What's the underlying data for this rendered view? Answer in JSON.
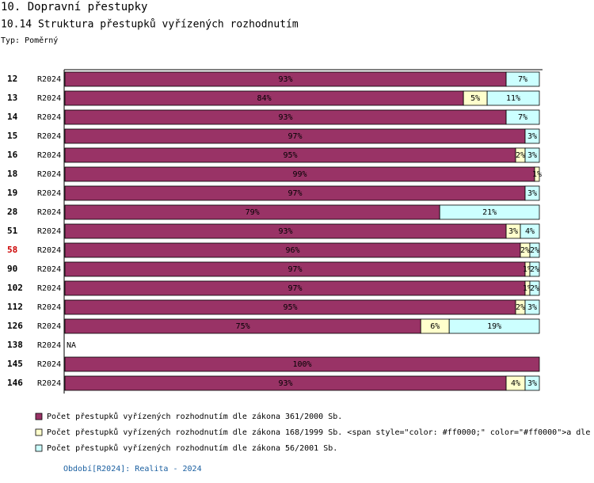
{
  "chart_data": {
    "type": "stacked-barh",
    "title": "10. Dopravní přestupky",
    "subtitle": "10.14 Struktura přestupků vyřízených rozhodnutím",
    "type_label": "Typ: Poměrný",
    "categories": [
      "12",
      "13",
      "14",
      "15",
      "16",
      "18",
      "19",
      "28",
      "51",
      "58",
      "90",
      "102",
      "112",
      "126",
      "138",
      "145",
      "146"
    ],
    "category_colors": [
      "#000000",
      "#000000",
      "#000000",
      "#000000",
      "#000000",
      "#000000",
      "#000000",
      "#000000",
      "#000000",
      "#cc0000",
      "#000000",
      "#000000",
      "#000000",
      "#000000",
      "#000000",
      "#000000",
      "#000000"
    ],
    "periods": [
      "R2024",
      "R2024",
      "R2024",
      "R2024",
      "R2024",
      "R2024",
      "R2024",
      "R2024",
      "R2024",
      "R2024",
      "R2024",
      "R2024",
      "R2024",
      "R2024",
      "R2024",
      "R2024",
      "R2024"
    ],
    "row_notes": [
      null,
      null,
      null,
      null,
      null,
      null,
      null,
      null,
      null,
      null,
      null,
      null,
      null,
      null,
      "NA",
      null,
      null
    ],
    "xlim": [
      0,
      100
    ],
    "series": [
      {
        "name": "Počet přestupků vyřízených rozhodnutím dle zákona 361/2000 Sb.",
        "color": "#993366",
        "values": [
          93,
          84,
          93,
          97,
          95,
          99,
          97,
          79,
          93,
          96,
          97,
          97,
          95,
          75,
          null,
          100,
          93
        ],
        "value_labels": [
          "93%",
          "84%",
          "93%",
          "97%",
          "95%",
          "99%",
          "97%",
          "79%",
          "93%",
          "96%",
          "97%",
          "97%",
          "95%",
          "75%",
          null,
          "100%",
          "93%"
        ]
      },
      {
        "name": "Počet přestupků vyřízených rozhodnutím dle zákona 168/1999 Sb. <span style=\"color: #ff0000;\" color=\"#ff0000\">a dle",
        "color": "#ffffcc",
        "values": [
          null,
          5,
          null,
          null,
          2,
          1,
          null,
          null,
          3,
          2,
          1,
          1,
          2,
          6,
          null,
          null,
          4
        ],
        "value_labels": [
          null,
          "5%",
          null,
          null,
          "2%",
          "1%",
          null,
          null,
          "3%",
          "2%",
          "1%",
          "1%",
          "2%",
          "6%",
          null,
          null,
          "4%"
        ]
      },
      {
        "name": "Počet přestupků vyřízených rozhodnutím dle zákona 56/2001 Sb.",
        "color": "#ccffff",
        "values": [
          7,
          11,
          7,
          3,
          3,
          null,
          3,
          21,
          4,
          2,
          2,
          2,
          3,
          19,
          null,
          null,
          3
        ],
        "value_labels": [
          "7%",
          "11%",
          "7%",
          "3%",
          "3%",
          null,
          "3%",
          "21%",
          "4%",
          "2%",
          "2%",
          "2%",
          "3%",
          "19%",
          null,
          null,
          "3%"
        ]
      }
    ],
    "footer": "Období[R2024]: Realita - 2024"
  }
}
